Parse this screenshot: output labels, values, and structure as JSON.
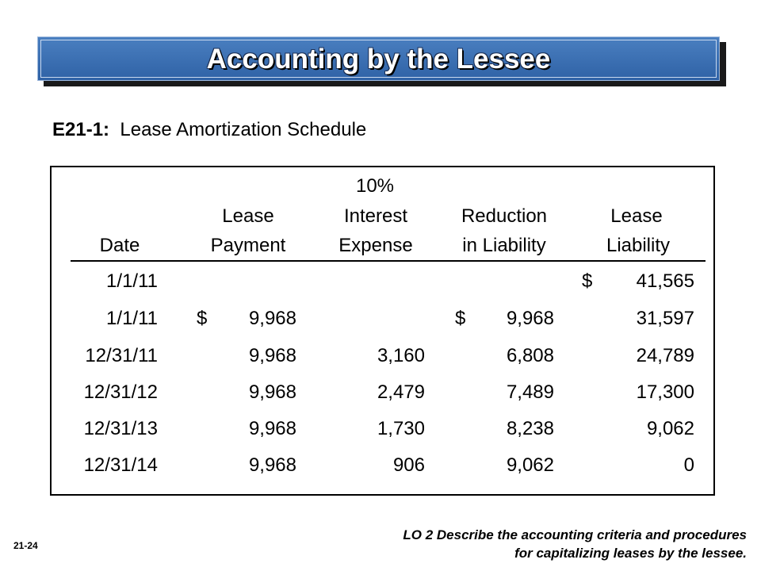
{
  "banner": {
    "title": "Accounting by the Lessee"
  },
  "subtitle": {
    "code": "E21-1:",
    "text": "Lease Amortization Schedule"
  },
  "table": {
    "headers": {
      "rate": "10%",
      "lease_top": "Lease",
      "interest_top": "Interest",
      "reduction_top": "Reduction",
      "liability_top": "Lease",
      "date": "Date",
      "payment": "Payment",
      "expense": "Expense",
      "in_liability": "in Liability",
      "liability": "Liability"
    },
    "currency_symbol": "$",
    "rows": [
      {
        "date": "1/1/11",
        "payment": "",
        "interest": "",
        "reduction": "",
        "liability": "41,565"
      },
      {
        "date": "1/1/11",
        "payment": "9,968",
        "interest": "",
        "reduction": "9,968",
        "liability": "31,597"
      },
      {
        "date": "12/31/11",
        "payment": "9,968",
        "interest": "3,160",
        "reduction": "6,808",
        "liability": "24,789"
      },
      {
        "date": "12/31/12",
        "payment": "9,968",
        "interest": "2,479",
        "reduction": "7,489",
        "liability": "17,300"
      },
      {
        "date": "12/31/13",
        "payment": "9,968",
        "interest": "1,730",
        "reduction": "8,238",
        "liability": "9,062"
      },
      {
        "date": "12/31/14",
        "payment": "9,968",
        "interest": "906",
        "reduction": "9,062",
        "liability": "0"
      }
    ]
  },
  "footer": {
    "page_number": "21-24",
    "lo_line1": "LO 2  Describe the accounting criteria and procedures",
    "lo_line2": "for capitalizing leases by the lessee."
  },
  "colors": {
    "banner_top": "#4a7fc0",
    "banner_bottom": "#2f62a6",
    "banner_text": "#ffffff"
  }
}
